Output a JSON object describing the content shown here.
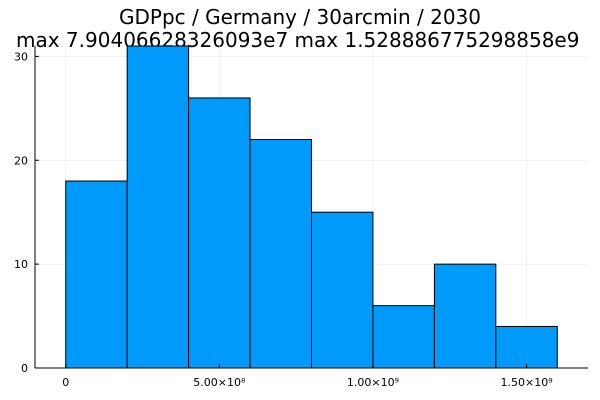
{
  "chart_data": {
    "type": "bar",
    "title_line1": "GDPpc / Germany / 30arcmin / 2030",
    "title_line2": "max 7.90406628326093e7  max 1.528886775298858e9",
    "bins": [
      {
        "start": 0,
        "end": 200000000,
        "count": 18
      },
      {
        "start": 200000000,
        "end": 400000000,
        "count": 31
      },
      {
        "start": 400000000,
        "end": 600000000,
        "count": 26
      },
      {
        "start": 600000000,
        "end": 800000000,
        "count": 22
      },
      {
        "start": 800000000,
        "end": 1000000000,
        "count": 15
      },
      {
        "start": 1000000000,
        "end": 1200000000,
        "count": 6
      },
      {
        "start": 1200000000,
        "end": 1400000000,
        "count": 10
      },
      {
        "start": 1400000000,
        "end": 1600000000,
        "count": 4
      }
    ],
    "xlim": [
      -100000000,
      1700000000
    ],
    "ylim": [
      0,
      31
    ],
    "x_ticks": [
      {
        "value": 0,
        "label": "0"
      },
      {
        "value": 500000000,
        "label": "5.00×10⁸"
      },
      {
        "value": 1000000000,
        "label": "1.00×10⁹"
      },
      {
        "value": 1500000000,
        "label": "1.50×10⁹"
      }
    ],
    "y_ticks": [
      {
        "value": 0,
        "label": "0"
      },
      {
        "value": 10,
        "label": "10"
      },
      {
        "value": 20,
        "label": "20"
      },
      {
        "value": 30,
        "label": "30"
      }
    ],
    "grid": true,
    "legend": "none",
    "bar_color": "#009AFA",
    "edge_color": "#000000"
  }
}
